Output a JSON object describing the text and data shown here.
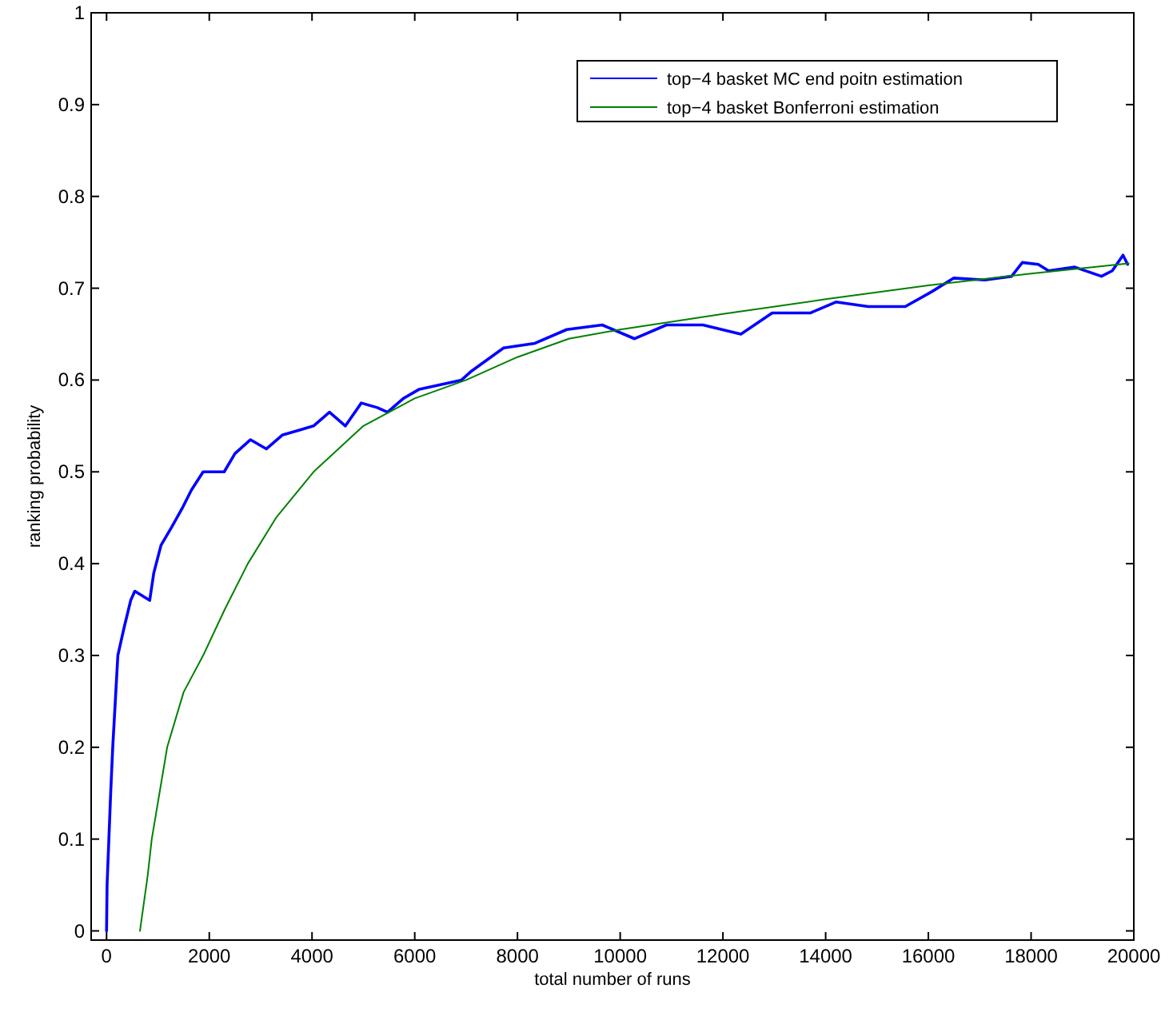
{
  "chart_data": {
    "type": "line",
    "xlabel": "total number of runs",
    "ylabel": "ranking probability",
    "xlim": [
      -300,
      20000
    ],
    "ylim": [
      -0.01,
      1
    ],
    "xticks": [
      0,
      2000,
      4000,
      6000,
      8000,
      10000,
      12000,
      14000,
      16000,
      18000,
      20000
    ],
    "yticks": [
      0,
      0.1,
      0.2,
      0.3,
      0.4,
      0.5,
      0.6,
      0.7,
      0.8,
      0.9,
      1
    ],
    "grid": false,
    "legend": "top right",
    "line_style": "solid",
    "series": [
      {
        "name": "top−4 basket MC end poitn estimation",
        "color": "#0000ff",
        "x": [
          0,
          10,
          80,
          120,
          220,
          260,
          340,
          470,
          550,
          840,
          920,
          1060,
          1270,
          1470,
          1650,
          1880,
          2290,
          2500,
          2800,
          3110,
          3420,
          3730,
          4030,
          4340,
          4650,
          4960,
          5270,
          5470,
          5780,
          6090,
          6910,
          7110,
          7730,
          8340,
          8960,
          9650,
          10280,
          10900,
          11610,
          12350,
          12960,
          13700,
          14200,
          14830,
          15550,
          16060,
          16490,
          17100,
          17620,
          17830,
          18140,
          18340,
          18850,
          19370,
          19580,
          19790,
          19880
        ],
        "values": [
          0,
          0.05,
          0.15,
          0.2,
          0.3,
          0.31,
          0.33,
          0.36,
          0.37,
          0.36,
          0.39,
          0.42,
          0.44,
          0.46,
          0.48,
          0.5,
          0.5,
          0.52,
          0.535,
          0.525,
          0.54,
          0.545,
          0.55,
          0.565,
          0.55,
          0.575,
          0.57,
          0.565,
          0.58,
          0.59,
          0.6,
          0.61,
          0.635,
          0.64,
          0.655,
          0.66,
          0.645,
          0.66,
          0.66,
          0.65,
          0.673,
          0.673,
          0.685,
          0.68,
          0.68,
          0.696,
          0.711,
          0.709,
          0.713,
          0.728,
          0.726,
          0.719,
          0.723,
          0.713,
          0.719,
          0.736,
          0.726
        ]
      },
      {
        "name": "top−4 basket Bonferroni estimation",
        "color": "#008000",
        "x": [
          650,
          800,
          880,
          1000,
          1180,
          1500,
          1880,
          2300,
          2750,
          3300,
          4030,
          5000,
          6000,
          7000,
          8000,
          9000,
          10000,
          12000,
          14000,
          16000,
          18000,
          19900
        ],
        "values": [
          0,
          0.06,
          0.1,
          0.14,
          0.2,
          0.26,
          0.3,
          0.35,
          0.4,
          0.45,
          0.5,
          0.55,
          0.58,
          0.6,
          0.625,
          0.645,
          0.655,
          0.672,
          0.688,
          0.703,
          0.716,
          0.727
        ]
      }
    ]
  }
}
